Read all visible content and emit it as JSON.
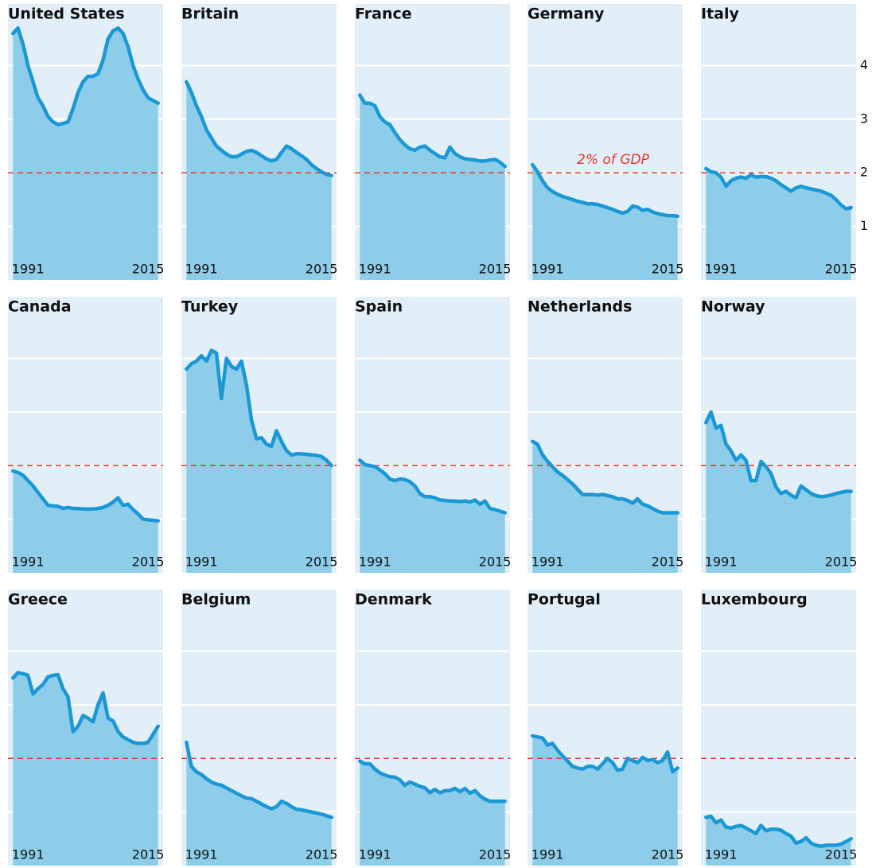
{
  "chart_data": [
    {
      "type": "area",
      "title": "United States",
      "x": [
        1988,
        1989,
        1990,
        1991,
        1992,
        1993,
        1994,
        1995,
        1996,
        1997,
        1998,
        1999,
        2000,
        2001,
        2002,
        2003,
        2004,
        2005,
        2006,
        2007,
        2008,
        2009,
        2010,
        2011,
        2012,
        2013,
        2014,
        2015,
        2016,
        2017
      ],
      "values": [
        4.6,
        4.7,
        4.4,
        4.0,
        3.7,
        3.4,
        3.25,
        3.05,
        2.95,
        2.9,
        2.92,
        2.95,
        3.2,
        3.5,
        3.7,
        3.8,
        3.8,
        3.85,
        4.1,
        4.5,
        4.65,
        4.7,
        4.6,
        4.35,
        4.0,
        3.75,
        3.55,
        3.4,
        3.35,
        3.3
      ],
      "xlim": [
        1987,
        2018
      ],
      "ylim": [
        0,
        5.15
      ],
      "xticks": [
        1991,
        2015
      ],
      "yticks": [
        1,
        2,
        3,
        4
      ],
      "reference": 2,
      "line_color": "#1a98d5",
      "area_color": "#8dcde9",
      "reference_color": "#e8332a"
    },
    {
      "type": "area",
      "title": "Britain",
      "x": [
        1988,
        1989,
        1990,
        1991,
        1992,
        1993,
        1994,
        1995,
        1996,
        1997,
        1998,
        1999,
        2000,
        2001,
        2002,
        2003,
        2004,
        2005,
        2006,
        2007,
        2008,
        2009,
        2010,
        2011,
        2012,
        2013,
        2014,
        2015,
        2016,
        2017
      ],
      "values": [
        3.7,
        3.5,
        3.25,
        3.05,
        2.8,
        2.65,
        2.5,
        2.42,
        2.35,
        2.3,
        2.3,
        2.35,
        2.4,
        2.42,
        2.38,
        2.32,
        2.26,
        2.22,
        2.25,
        2.38,
        2.5,
        2.45,
        2.38,
        2.32,
        2.25,
        2.15,
        2.08,
        2.02,
        1.97,
        1.95
      ],
      "xlim": [
        1987,
        2018
      ],
      "ylim": [
        0,
        5.15
      ],
      "xticks": [
        1991,
        2015
      ],
      "yticks": [
        1,
        2,
        3,
        4
      ],
      "reference": 2,
      "line_color": "#1a98d5",
      "area_color": "#8dcde9",
      "reference_color": "#e8332a"
    },
    {
      "type": "area",
      "title": "France",
      "x": [
        1988,
        1989,
        1990,
        1991,
        1992,
        1993,
        1994,
        1995,
        1996,
        1997,
        1998,
        1999,
        2000,
        2001,
        2002,
        2003,
        2004,
        2005,
        2006,
        2007,
        2008,
        2009,
        2010,
        2011,
        2012,
        2013,
        2014,
        2015,
        2016,
        2017
      ],
      "values": [
        3.45,
        3.3,
        3.3,
        3.25,
        3.05,
        2.95,
        2.9,
        2.75,
        2.62,
        2.52,
        2.45,
        2.42,
        2.48,
        2.5,
        2.42,
        2.36,
        2.3,
        2.28,
        2.48,
        2.36,
        2.3,
        2.26,
        2.25,
        2.24,
        2.22,
        2.22,
        2.24,
        2.25,
        2.2,
        2.12
      ],
      "xlim": [
        1987,
        2018
      ],
      "ylim": [
        0,
        5.15
      ],
      "xticks": [
        1991,
        2015
      ],
      "yticks": [
        1,
        2,
        3,
        4
      ],
      "reference": 2,
      "line_color": "#1a98d5",
      "area_color": "#8dcde9",
      "reference_color": "#e8332a"
    },
    {
      "type": "area",
      "title": "Germany",
      "x": [
        1988,
        1989,
        1990,
        1991,
        1992,
        1993,
        1994,
        1995,
        1996,
        1997,
        1998,
        1999,
        2000,
        2001,
        2002,
        2003,
        2004,
        2005,
        2006,
        2007,
        2008,
        2009,
        2010,
        2011,
        2012,
        2013,
        2014,
        2015,
        2016,
        2017
      ],
      "values": [
        2.15,
        2.02,
        1.85,
        1.72,
        1.65,
        1.6,
        1.56,
        1.53,
        1.5,
        1.47,
        1.45,
        1.42,
        1.42,
        1.41,
        1.38,
        1.35,
        1.32,
        1.28,
        1.25,
        1.28,
        1.38,
        1.36,
        1.3,
        1.32,
        1.27,
        1.24,
        1.22,
        1.2,
        1.2,
        1.19
      ],
      "xlim": [
        1987,
        2018
      ],
      "ylim": [
        0,
        5.15
      ],
      "xticks": [
        1991,
        2015
      ],
      "yticks": [
        1,
        2,
        3,
        4
      ],
      "reference": 2,
      "annotation": "2% of GDP",
      "line_color": "#1a98d5",
      "area_color": "#8dcde9",
      "reference_color": "#e8332a"
    },
    {
      "type": "area",
      "title": "Italy",
      "x": [
        1988,
        1989,
        1990,
        1991,
        1992,
        1993,
        1994,
        1995,
        1996,
        1997,
        1998,
        1999,
        2000,
        2001,
        2002,
        2003,
        2004,
        2005,
        2006,
        2007,
        2008,
        2009,
        2010,
        2011,
        2012,
        2013,
        2014,
        2015,
        2016,
        2017
      ],
      "values": [
        2.08,
        2.02,
        2.0,
        1.92,
        1.75,
        1.85,
        1.9,
        1.92,
        1.9,
        1.96,
        1.92,
        1.93,
        1.93,
        1.9,
        1.85,
        1.78,
        1.72,
        1.66,
        1.72,
        1.75,
        1.72,
        1.7,
        1.68,
        1.66,
        1.62,
        1.58,
        1.5,
        1.4,
        1.33,
        1.35
      ],
      "xlim": [
        1987,
        2018
      ],
      "ylim": [
        0,
        5.15
      ],
      "xticks": [
        1991,
        2015
      ],
      "yticks": [
        1,
        2,
        3,
        4
      ],
      "ytick_labels": "right",
      "reference": 2,
      "line_color": "#1a98d5",
      "area_color": "#8dcde9",
      "reference_color": "#e8332a"
    },
    {
      "type": "area",
      "title": "Canada",
      "x": [
        1988,
        1989,
        1990,
        1991,
        1992,
        1993,
        1994,
        1995,
        1996,
        1997,
        1998,
        1999,
        2000,
        2001,
        2002,
        2003,
        2004,
        2005,
        2006,
        2007,
        2008,
        2009,
        2010,
        2011,
        2012,
        2013,
        2014,
        2015,
        2016,
        2017
      ],
      "values": [
        1.9,
        1.87,
        1.82,
        1.72,
        1.62,
        1.5,
        1.38,
        1.26,
        1.25,
        1.24,
        1.2,
        1.22,
        1.2,
        1.2,
        1.19,
        1.19,
        1.19,
        1.2,
        1.22,
        1.26,
        1.32,
        1.4,
        1.26,
        1.28,
        1.18,
        1.1,
        1.0,
        0.99,
        0.98,
        0.97
      ],
      "xlim": [
        1987,
        2018
      ],
      "ylim": [
        0,
        5.15
      ],
      "xticks": [
        1991,
        2015
      ],
      "yticks": [
        1,
        2,
        3,
        4
      ],
      "reference": 2,
      "line_color": "#1a98d5",
      "area_color": "#8dcde9",
      "reference_color": "#e8332a"
    },
    {
      "type": "area",
      "title": "Turkey",
      "x": [
        1988,
        1989,
        1990,
        1991,
        1992,
        1993,
        1994,
        1995,
        1996,
        1997,
        1998,
        1999,
        2000,
        2001,
        2002,
        2003,
        2004,
        2005,
        2006,
        2007,
        2008,
        2009,
        2010,
        2011,
        2012,
        2013,
        2014,
        2015,
        2016,
        2017
      ],
      "values": [
        3.8,
        3.9,
        3.95,
        4.05,
        3.95,
        4.15,
        4.1,
        3.25,
        4.0,
        3.85,
        3.8,
        3.95,
        3.5,
        2.85,
        2.5,
        2.52,
        2.4,
        2.36,
        2.65,
        2.45,
        2.28,
        2.2,
        2.22,
        2.22,
        2.21,
        2.2,
        2.19,
        2.17,
        2.1,
        2.0
      ],
      "xlim": [
        1987,
        2018
      ],
      "ylim": [
        0,
        5.15
      ],
      "xticks": [
        1991,
        2015
      ],
      "yticks": [
        1,
        2,
        3,
        4
      ],
      "reference": 2,
      "line_color": "#1a98d5",
      "area_color": "#8dcde9",
      "reference_color": "#e8332a"
    },
    {
      "type": "area",
      "title": "Spain",
      "x": [
        1988,
        1989,
        1990,
        1991,
        1992,
        1993,
        1994,
        1995,
        1996,
        1997,
        1998,
        1999,
        2000,
        2001,
        2002,
        2003,
        2004,
        2005,
        2006,
        2007,
        2008,
        2009,
        2010,
        2011,
        2012,
        2013,
        2014,
        2015,
        2016,
        2017
      ],
      "values": [
        2.1,
        2.02,
        2.0,
        1.98,
        1.92,
        1.85,
        1.75,
        1.72,
        1.75,
        1.74,
        1.7,
        1.62,
        1.48,
        1.42,
        1.42,
        1.4,
        1.36,
        1.35,
        1.34,
        1.34,
        1.33,
        1.34,
        1.32,
        1.36,
        1.28,
        1.34,
        1.2,
        1.18,
        1.15,
        1.12
      ],
      "xlim": [
        1987,
        2018
      ],
      "ylim": [
        0,
        5.15
      ],
      "xticks": [
        1991,
        2015
      ],
      "yticks": [
        1,
        2,
        3,
        4
      ],
      "reference": 2,
      "line_color": "#1a98d5",
      "area_color": "#8dcde9",
      "reference_color": "#e8332a"
    },
    {
      "type": "area",
      "title": "Netherlands",
      "x": [
        1988,
        1989,
        1990,
        1991,
        1992,
        1993,
        1994,
        1995,
        1996,
        1997,
        1998,
        1999,
        2000,
        2001,
        2002,
        2003,
        2004,
        2005,
        2006,
        2007,
        2008,
        2009,
        2010,
        2011,
        2012,
        2013,
        2014,
        2015,
        2016,
        2017
      ],
      "values": [
        2.45,
        2.4,
        2.2,
        2.08,
        1.98,
        1.88,
        1.82,
        1.74,
        1.66,
        1.56,
        1.46,
        1.46,
        1.46,
        1.45,
        1.46,
        1.44,
        1.42,
        1.38,
        1.38,
        1.35,
        1.3,
        1.38,
        1.28,
        1.25,
        1.2,
        1.15,
        1.12,
        1.12,
        1.12,
        1.12
      ],
      "xlim": [
        1987,
        2018
      ],
      "ylim": [
        0,
        5.15
      ],
      "xticks": [
        1991,
        2015
      ],
      "yticks": [
        1,
        2,
        3,
        4
      ],
      "reference": 2,
      "line_color": "#1a98d5",
      "area_color": "#8dcde9",
      "reference_color": "#e8332a"
    },
    {
      "type": "area",
      "title": "Norway",
      "x": [
        1988,
        1989,
        1990,
        1991,
        1992,
        1993,
        1994,
        1995,
        1996,
        1997,
        1998,
        1999,
        2000,
        2001,
        2002,
        2003,
        2004,
        2005,
        2006,
        2007,
        2008,
        2009,
        2010,
        2011,
        2012,
        2013,
        2014,
        2015,
        2016,
        2017
      ],
      "values": [
        2.8,
        3.0,
        2.7,
        2.75,
        2.4,
        2.28,
        2.1,
        2.2,
        2.1,
        1.72,
        1.72,
        2.08,
        1.98,
        1.85,
        1.6,
        1.48,
        1.52,
        1.45,
        1.4,
        1.62,
        1.55,
        1.48,
        1.44,
        1.42,
        1.43,
        1.45,
        1.48,
        1.5,
        1.52,
        1.52
      ],
      "xlim": [
        1987,
        2018
      ],
      "ylim": [
        0,
        5.15
      ],
      "xticks": [
        1991,
        2015
      ],
      "yticks": [
        1,
        2,
        3,
        4
      ],
      "reference": 2,
      "line_color": "#1a98d5",
      "area_color": "#8dcde9",
      "reference_color": "#e8332a"
    },
    {
      "type": "area",
      "title": "Greece",
      "x": [
        1988,
        1989,
        1990,
        1991,
        1992,
        1993,
        1994,
        1995,
        1996,
        1997,
        1998,
        1999,
        2000,
        2001,
        2002,
        2003,
        2004,
        2005,
        2006,
        2007,
        2008,
        2009,
        2010,
        2011,
        2012,
        2013,
        2014,
        2015,
        2016,
        2017
      ],
      "values": [
        3.5,
        3.6,
        3.58,
        3.55,
        3.2,
        3.3,
        3.38,
        3.52,
        3.55,
        3.56,
        3.3,
        3.15,
        2.5,
        2.6,
        2.8,
        2.75,
        2.68,
        3.0,
        3.22,
        2.75,
        2.7,
        2.5,
        2.4,
        2.35,
        2.3,
        2.28,
        2.28,
        2.3,
        2.45,
        2.6
      ],
      "xlim": [
        1987,
        2018
      ],
      "ylim": [
        0,
        5.15
      ],
      "xticks": [
        1991,
        2015
      ],
      "yticks": [
        1,
        2,
        3,
        4
      ],
      "reference": 2,
      "line_color": "#1a98d5",
      "area_color": "#8dcde9",
      "reference_color": "#e8332a"
    },
    {
      "type": "area",
      "title": "Belgium",
      "x": [
        1988,
        1989,
        1990,
        1991,
        1992,
        1993,
        1994,
        1995,
        1996,
        1997,
        1998,
        1999,
        2000,
        2001,
        2002,
        2003,
        2004,
        2005,
        2006,
        2007,
        2008,
        2009,
        2010,
        2011,
        2012,
        2013,
        2014,
        2015,
        2016,
        2017
      ],
      "values": [
        2.3,
        1.85,
        1.75,
        1.7,
        1.62,
        1.56,
        1.52,
        1.5,
        1.45,
        1.4,
        1.35,
        1.3,
        1.26,
        1.25,
        1.2,
        1.15,
        1.1,
        1.06,
        1.1,
        1.2,
        1.16,
        1.1,
        1.05,
        1.04,
        1.02,
        1.0,
        0.98,
        0.96,
        0.93,
        0.9
      ],
      "xlim": [
        1987,
        2018
      ],
      "ylim": [
        0,
        5.15
      ],
      "xticks": [
        1991,
        2015
      ],
      "yticks": [
        1,
        2,
        3,
        4
      ],
      "reference": 2,
      "line_color": "#1a98d5",
      "area_color": "#8dcde9",
      "reference_color": "#e8332a"
    },
    {
      "type": "area",
      "title": "Denmark",
      "x": [
        1988,
        1989,
        1990,
        1991,
        1992,
        1993,
        1994,
        1995,
        1996,
        1997,
        1998,
        1999,
        2000,
        2001,
        2002,
        2003,
        2004,
        2005,
        2006,
        2007,
        2008,
        2009,
        2010,
        2011,
        2012,
        2013,
        2014,
        2015,
        2016,
        2017
      ],
      "values": [
        1.95,
        1.9,
        1.9,
        1.8,
        1.73,
        1.69,
        1.66,
        1.65,
        1.6,
        1.5,
        1.56,
        1.52,
        1.48,
        1.45,
        1.36,
        1.42,
        1.36,
        1.4,
        1.4,
        1.44,
        1.38,
        1.44,
        1.35,
        1.4,
        1.3,
        1.24,
        1.2,
        1.2,
        1.2,
        1.2
      ],
      "xlim": [
        1987,
        2018
      ],
      "ylim": [
        0,
        5.15
      ],
      "xticks": [
        1991,
        2015
      ],
      "yticks": [
        1,
        2,
        3,
        4
      ],
      "reference": 2,
      "line_color": "#1a98d5",
      "area_color": "#8dcde9",
      "reference_color": "#e8332a"
    },
    {
      "type": "area",
      "title": "Portugal",
      "x": [
        1988,
        1989,
        1990,
        1991,
        1992,
        1993,
        1994,
        1995,
        1996,
        1997,
        1998,
        1999,
        2000,
        2001,
        2002,
        2003,
        2004,
        2005,
        2006,
        2007,
        2008,
        2009,
        2010,
        2011,
        2012,
        2013,
        2014,
        2015,
        2016,
        2017
      ],
      "values": [
        2.42,
        2.4,
        2.38,
        2.25,
        2.28,
        2.15,
        2.05,
        1.95,
        1.85,
        1.82,
        1.8,
        1.85,
        1.85,
        1.8,
        1.9,
        2.0,
        1.92,
        1.78,
        1.8,
        2.0,
        1.96,
        1.92,
        2.02,
        1.96,
        1.98,
        1.92,
        1.96,
        2.12,
        1.75,
        1.82
      ],
      "xlim": [
        1987,
        2018
      ],
      "ylim": [
        0,
        5.15
      ],
      "xticks": [
        1991,
        2015
      ],
      "yticks": [
        1,
        2,
        3,
        4
      ],
      "reference": 2,
      "line_color": "#1a98d5",
      "area_color": "#8dcde9",
      "reference_color": "#e8332a"
    },
    {
      "type": "area",
      "title": "Luxembourg",
      "x": [
        1988,
        1989,
        1990,
        1991,
        1992,
        1993,
        1994,
        1995,
        1996,
        1997,
        1998,
        1999,
        2000,
        2001,
        2002,
        2003,
        2004,
        2005,
        2006,
        2007,
        2008,
        2009,
        2010,
        2011,
        2012,
        2013,
        2014,
        2015,
        2016,
        2017
      ],
      "values": [
        0.9,
        0.92,
        0.8,
        0.85,
        0.72,
        0.7,
        0.73,
        0.75,
        0.7,
        0.65,
        0.6,
        0.75,
        0.65,
        0.68,
        0.68,
        0.66,
        0.6,
        0.55,
        0.42,
        0.45,
        0.52,
        0.42,
        0.38,
        0.36,
        0.38,
        0.38,
        0.38,
        0.4,
        0.45,
        0.5
      ],
      "xlim": [
        1987,
        2018
      ],
      "ylim": [
        0,
        5.15
      ],
      "xticks": [
        1991,
        2015
      ],
      "yticks": [
        1,
        2,
        3,
        4
      ],
      "reference": 2,
      "line_color": "#1a98d5",
      "area_color": "#8dcde9",
      "reference_color": "#e8332a"
    }
  ]
}
